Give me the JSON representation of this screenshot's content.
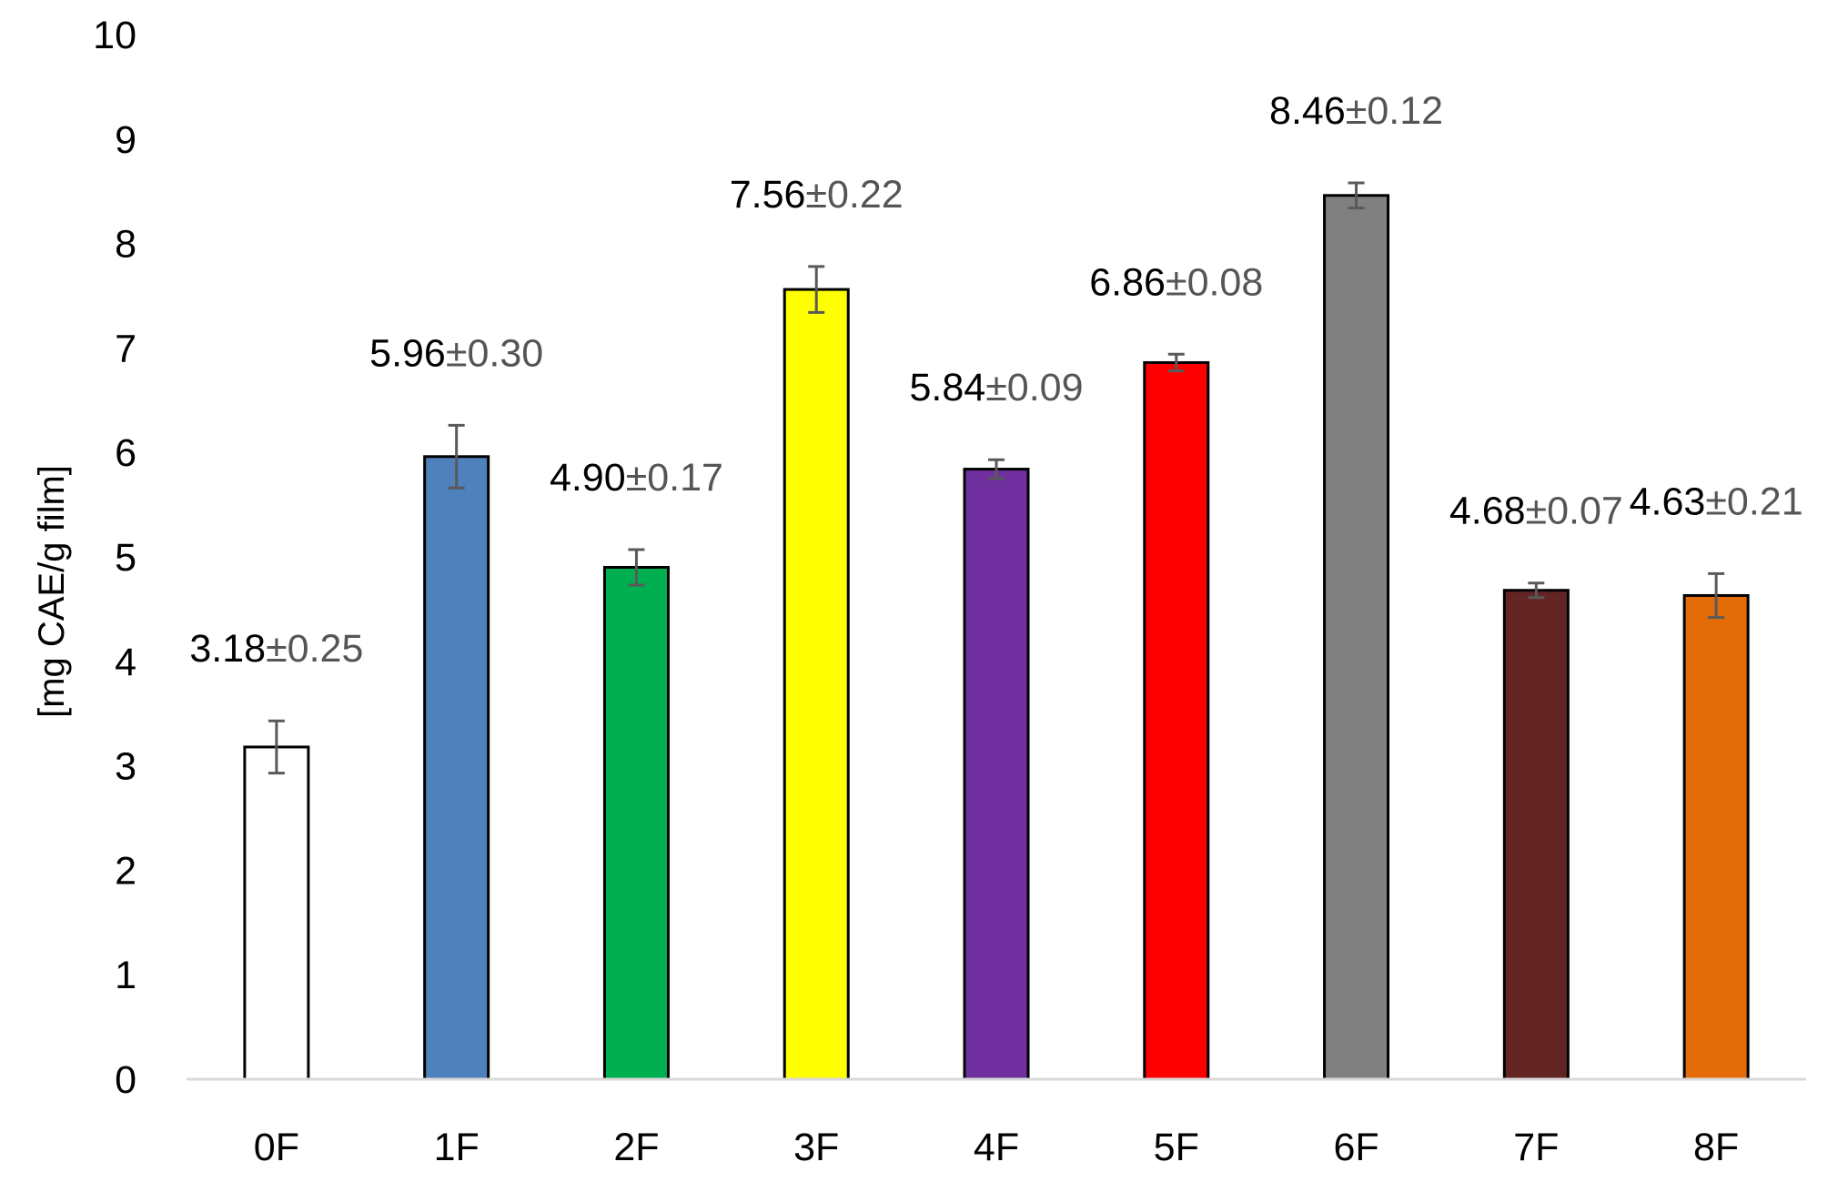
{
  "chart_data": {
    "type": "bar",
    "title": "",
    "xlabel": "",
    "ylabel": "[mg CAE/g film]",
    "ylim": [
      0,
      10
    ],
    "yticks": [
      "0",
      "1",
      "2",
      "3",
      "4",
      "5",
      "6",
      "7",
      "8",
      "9",
      "10"
    ],
    "grid": false,
    "legend": "none",
    "categories": [
      "0F",
      "1F",
      "2F",
      "3F",
      "4F",
      "5F",
      "6F",
      "7F",
      "8F"
    ],
    "values": [
      3.18,
      5.96,
      4.9,
      7.56,
      5.84,
      6.86,
      8.46,
      4.68,
      4.63
    ],
    "errors": [
      0.25,
      0.3,
      0.17,
      0.22,
      0.09,
      0.08,
      0.12,
      0.07,
      0.21
    ],
    "value_labels": [
      "3.18",
      "5.96",
      "4.90",
      "7.56",
      "5.84",
      "6.86",
      "8.46",
      "4.68",
      "4.63"
    ],
    "error_labels": [
      "±0.25",
      "±0.30",
      "±0.17",
      "±0.22",
      "±0.09",
      "±0.08",
      "±0.12",
      "±0.07",
      "±0.21"
    ],
    "colors": [
      "#ffffff",
      "#4f81bd",
      "#00b050",
      "#ffff00",
      "#7030a0",
      "#ff0000",
      "#808080",
      "#632523",
      "#e36c09"
    ]
  }
}
